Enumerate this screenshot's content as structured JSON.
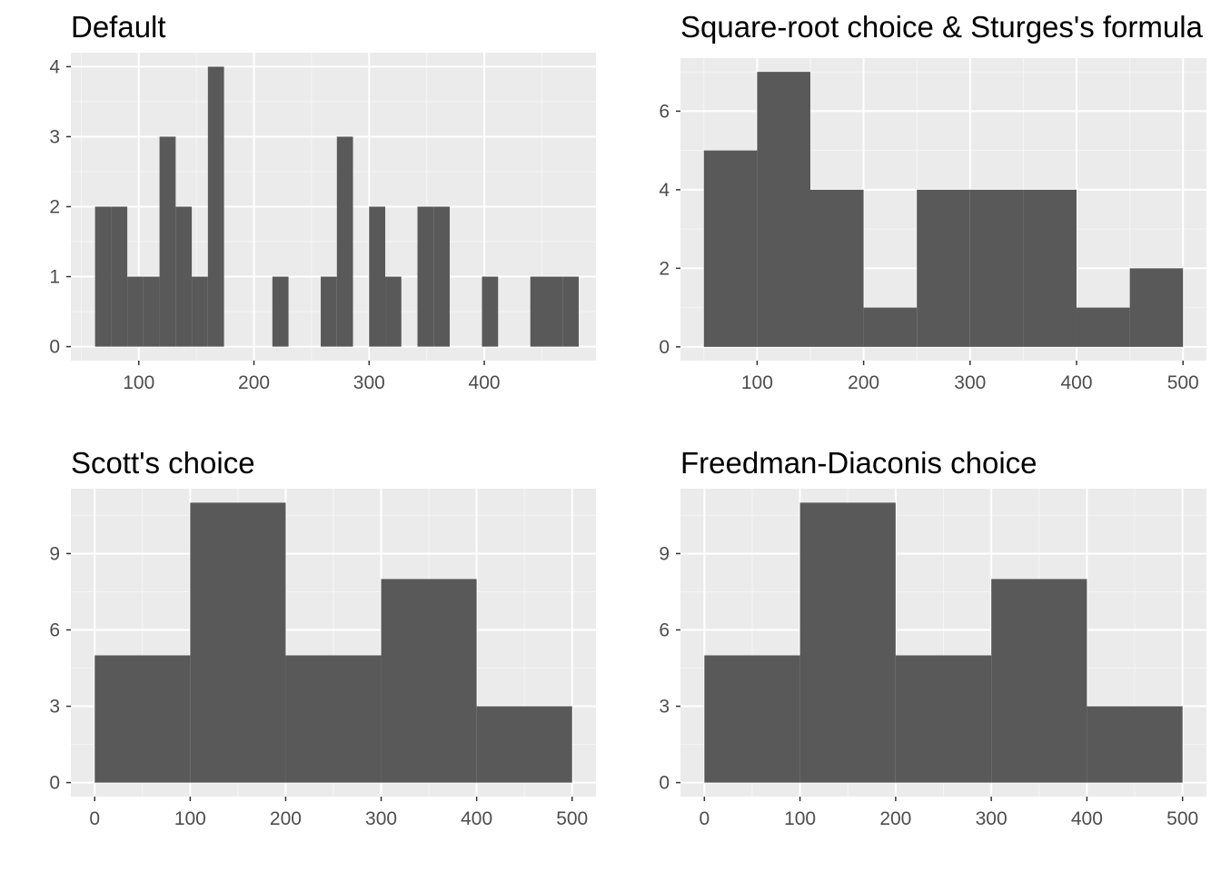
{
  "colors": {
    "panel_bg": "#ebebeb",
    "grid_major": "#ffffff",
    "grid_minor": "#f5f5f5",
    "bar_fill": "#595959",
    "tick": "#333333",
    "tick_text": "#4d4d4d"
  },
  "chart_data": [
    {
      "type": "bar",
      "title": "Default",
      "xlabel": "",
      "ylabel": "",
      "xlim": [
        41,
        497
      ],
      "ylim": [
        -0.2,
        4.2
      ],
      "xticks": [
        100,
        200,
        300,
        400
      ],
      "yticks": [
        0,
        1,
        2,
        3,
        4
      ],
      "bins": [
        {
          "x0": 62,
          "x1": 76,
          "count": 2
        },
        {
          "x0": 76,
          "x1": 90,
          "count": 2
        },
        {
          "x0": 90,
          "x1": 104,
          "count": 1
        },
        {
          "x0": 104,
          "x1": 118,
          "count": 1
        },
        {
          "x0": 118,
          "x1": 132,
          "count": 3
        },
        {
          "x0": 132,
          "x1": 146,
          "count": 2
        },
        {
          "x0": 146,
          "x1": 160,
          "count": 1
        },
        {
          "x0": 160,
          "x1": 174,
          "count": 4
        },
        {
          "x0": 216,
          "x1": 230,
          "count": 1
        },
        {
          "x0": 258,
          "x1": 272,
          "count": 1
        },
        {
          "x0": 272,
          "x1": 286,
          "count": 3
        },
        {
          "x0": 300,
          "x1": 314,
          "count": 2
        },
        {
          "x0": 314,
          "x1": 328,
          "count": 1
        },
        {
          "x0": 342,
          "x1": 356,
          "count": 2
        },
        {
          "x0": 356,
          "x1": 370,
          "count": 2
        },
        {
          "x0": 398,
          "x1": 412,
          "count": 1
        },
        {
          "x0": 440,
          "x1": 454,
          "count": 1
        },
        {
          "x0": 454,
          "x1": 468,
          "count": 1
        },
        {
          "x0": 468,
          "x1": 482,
          "count": 1
        }
      ]
    },
    {
      "type": "bar",
      "title": "Square-root choice & Sturges's formula",
      "xlabel": "",
      "ylabel": "",
      "xlim": [
        28,
        522
      ],
      "ylim": [
        -0.35,
        7.35
      ],
      "xticks": [
        100,
        200,
        300,
        400,
        500
      ],
      "yticks": [
        0,
        2,
        4,
        6
      ],
      "bins": [
        {
          "x0": 50,
          "x1": 100,
          "count": 5
        },
        {
          "x0": 100,
          "x1": 150,
          "count": 7
        },
        {
          "x0": 150,
          "x1": 200,
          "count": 4
        },
        {
          "x0": 200,
          "x1": 250,
          "count": 1
        },
        {
          "x0": 250,
          "x1": 300,
          "count": 4
        },
        {
          "x0": 300,
          "x1": 350,
          "count": 4
        },
        {
          "x0": 350,
          "x1": 400,
          "count": 4
        },
        {
          "x0": 400,
          "x1": 450,
          "count": 1
        },
        {
          "x0": 450,
          "x1": 500,
          "count": 2
        }
      ]
    },
    {
      "type": "bar",
      "title": "Scott's choice",
      "xlabel": "",
      "ylabel": "",
      "xlim": [
        -25,
        525
      ],
      "ylim": [
        -0.55,
        11.55
      ],
      "xticks": [
        0,
        100,
        200,
        300,
        400,
        500
      ],
      "yticks": [
        0,
        3,
        6,
        9
      ],
      "bins": [
        {
          "x0": 0,
          "x1": 100,
          "count": 5
        },
        {
          "x0": 100,
          "x1": 200,
          "count": 11
        },
        {
          "x0": 200,
          "x1": 300,
          "count": 5
        },
        {
          "x0": 300,
          "x1": 400,
          "count": 8
        },
        {
          "x0": 400,
          "x1": 500,
          "count": 3
        }
      ]
    },
    {
      "type": "bar",
      "title": "Freedman-Diaconis choice",
      "xlabel": "",
      "ylabel": "",
      "xlim": [
        -25,
        525
      ],
      "ylim": [
        -0.55,
        11.55
      ],
      "xticks": [
        0,
        100,
        200,
        300,
        400,
        500
      ],
      "yticks": [
        0,
        3,
        6,
        9
      ],
      "bins": [
        {
          "x0": 0,
          "x1": 100,
          "count": 5
        },
        {
          "x0": 100,
          "x1": 200,
          "count": 11
        },
        {
          "x0": 200,
          "x1": 300,
          "count": 5
        },
        {
          "x0": 300,
          "x1": 400,
          "count": 8
        },
        {
          "x0": 400,
          "x1": 500,
          "count": 3
        }
      ]
    }
  ]
}
